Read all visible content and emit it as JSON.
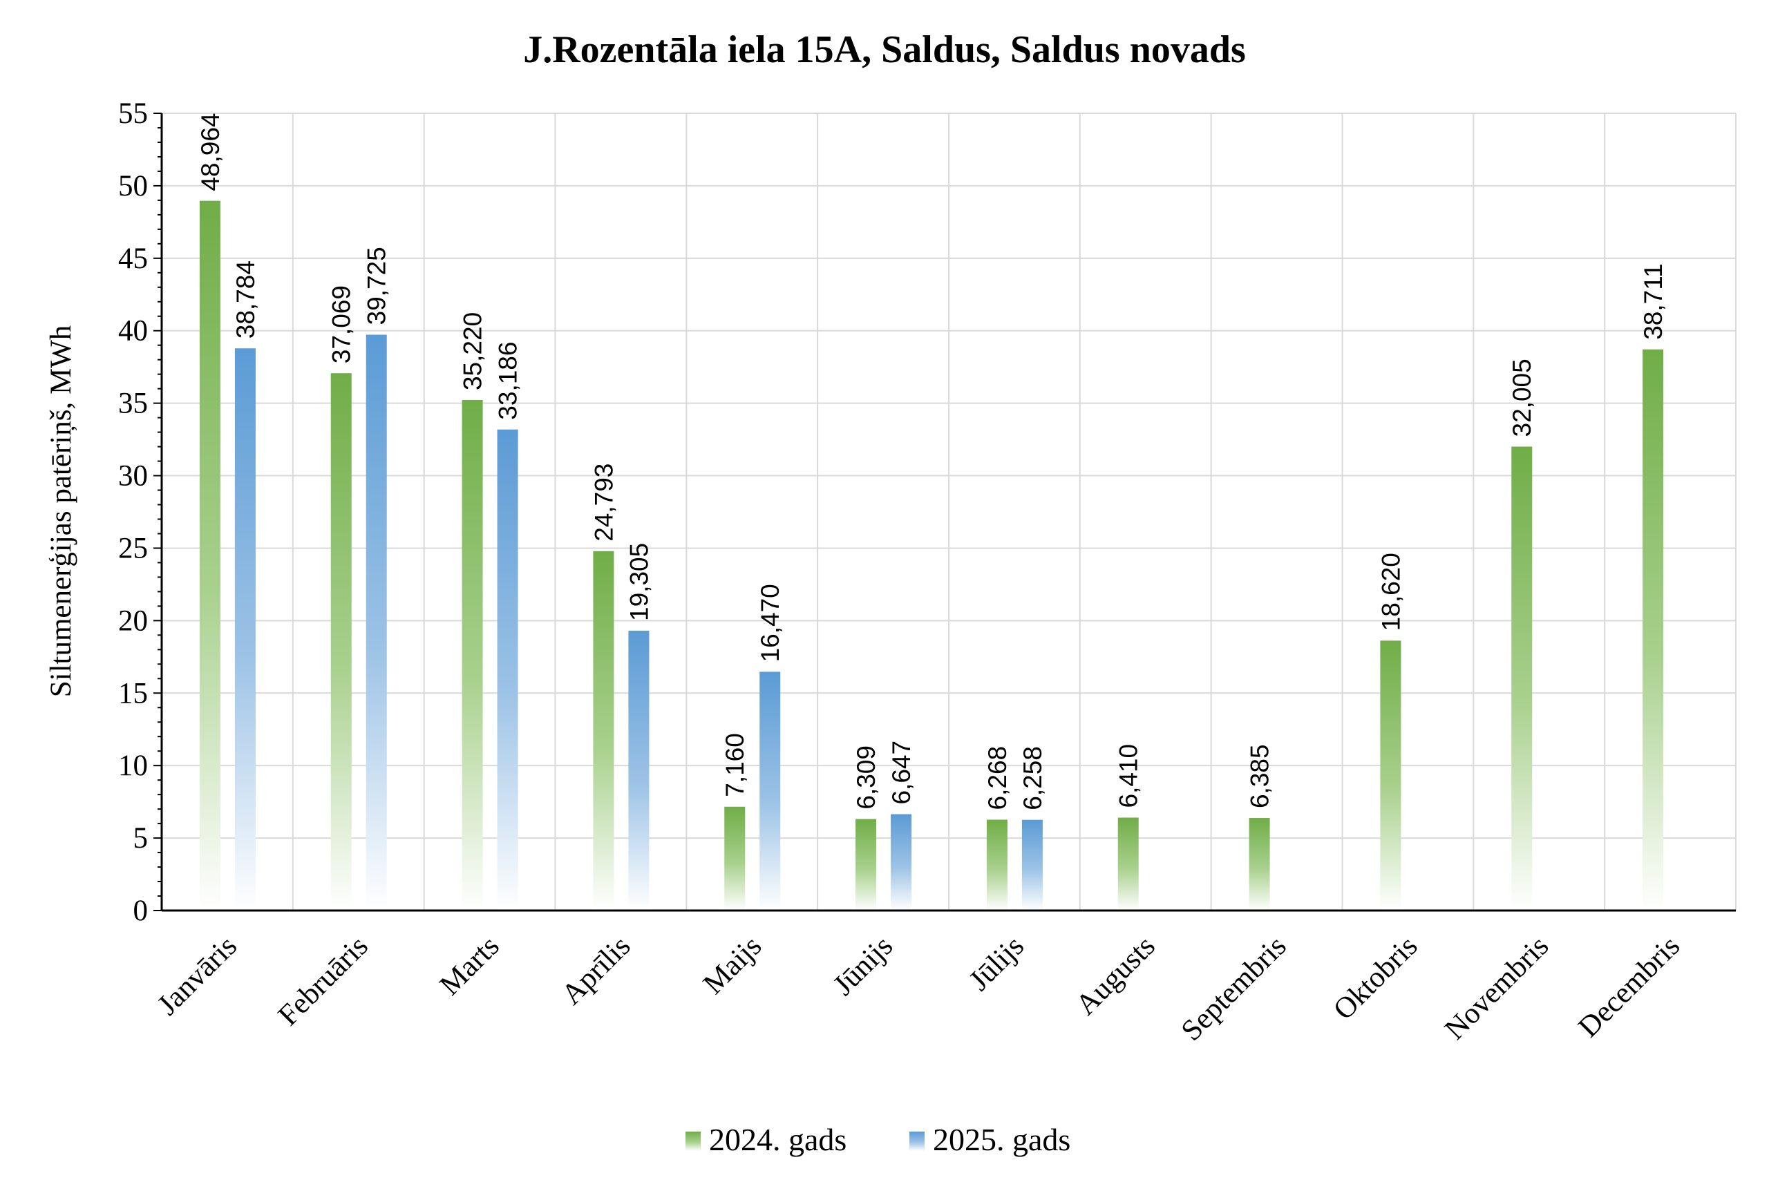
{
  "chart_data": {
    "type": "bar",
    "title": "J.Rozentāla iela 15A, Saldus, Saldus novads",
    "ylabel": "Siltumenerģijas patēriņš, MWh",
    "xlabel": "",
    "ylim": [
      0,
      55
    ],
    "yticks": [
      0,
      5,
      10,
      15,
      20,
      25,
      30,
      35,
      40,
      45,
      50,
      55
    ],
    "grid": true,
    "legend_position": "bottom",
    "categories": [
      "Janvāris",
      "Februāris",
      "Marts",
      "Aprīlis",
      "Maijs",
      "Jūnijs",
      "Jūlijs",
      "Augusts",
      "Septembris",
      "Oktobris",
      "Novembris",
      "Decembris"
    ],
    "series": [
      {
        "name": "2024. gads",
        "color": "#70ad47",
        "values": [
          48.964,
          37.069,
          35.22,
          24.793,
          7.16,
          6.309,
          6.268,
          6.41,
          6.385,
          18.62,
          32.005,
          38.711
        ],
        "labels": [
          "48,964",
          "37,069",
          "35,220",
          "24,793",
          "7,160",
          "6,309",
          "6,268",
          "6,410",
          "6,385",
          "18,620",
          "32,005",
          "38,711"
        ]
      },
      {
        "name": "2025. gads",
        "color": "#5b9bd5",
        "values": [
          38.784,
          39.725,
          33.186,
          19.305,
          16.47,
          6.647,
          6.258,
          null,
          null,
          null,
          null,
          null
        ],
        "labels": [
          "38,784",
          "39,725",
          "33,186",
          "19,305",
          "16,470",
          "6,647",
          "6,258",
          "",
          "",
          "",
          "",
          ""
        ]
      }
    ]
  }
}
